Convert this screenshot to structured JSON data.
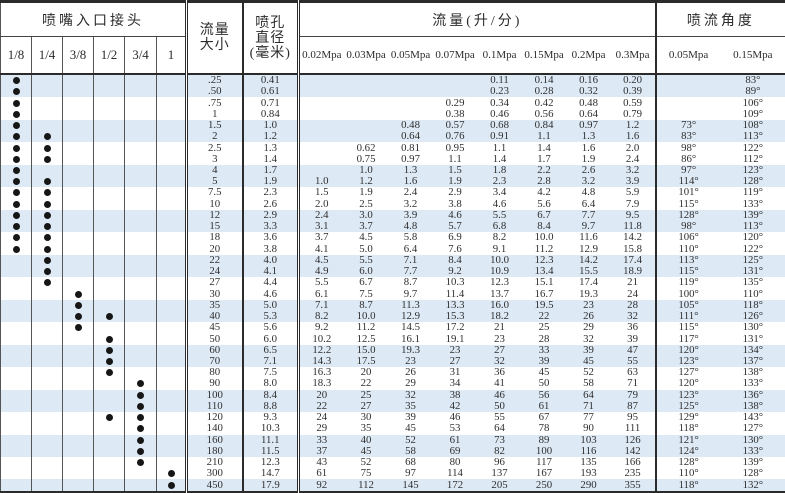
{
  "header": {
    "inlet_title": "喷嘴入口接头",
    "inlet_sizes": [
      "1/8",
      "1/4",
      "3/8",
      "1/2",
      "3/4",
      "1"
    ],
    "flow_size_label": "流量\n大小",
    "orifice_label": "喷孔\n直径\n(毫米)",
    "flow_title": "流量(升/分)",
    "flow_pressures": [
      "0.02Mpa",
      "0.03Mpa",
      "0.05Mpa",
      "0.07Mpa",
      "0.1Mpa",
      "0.15Mpa",
      "0.2Mpa",
      "0.3Mpa"
    ],
    "angle_title": "喷流角度",
    "angle_pressures": [
      "0.05Mpa",
      "0.15Mpa"
    ]
  },
  "colors": {
    "stripe": "#dde9f5",
    "text": "#2b2b2b",
    "border": "#2b2b2b",
    "dot": "#161616"
  },
  "rows": [
    {
      "size": ".25",
      "orifice": "0.41",
      "dots": [
        0
      ],
      "flows": [
        "",
        "",
        "",
        "",
        "0.11",
        "0.14",
        "0.16",
        "0.20"
      ],
      "angles": [
        "",
        "83°"
      ]
    },
    {
      "size": ".50",
      "orifice": "0.61",
      "dots": [
        0
      ],
      "flows": [
        "",
        "",
        "",
        "",
        "0.23",
        "0.28",
        "0.32",
        "0.39"
      ],
      "angles": [
        "",
        "89°"
      ]
    },
    {
      "size": ".75",
      "orifice": "0.71",
      "dots": [
        0
      ],
      "flows": [
        "",
        "",
        "",
        "0.29",
        "0.34",
        "0.42",
        "0.48",
        "0.59"
      ],
      "angles": [
        "",
        "106°"
      ]
    },
    {
      "size": "1",
      "orifice": "0.84",
      "dots": [
        0
      ],
      "flows": [
        "",
        "",
        "",
        "0.38",
        "0.46",
        "0.56",
        "0.64",
        "0.79"
      ],
      "angles": [
        "",
        "109°"
      ]
    },
    {
      "size": "1.5",
      "orifice": "1.0",
      "dots": [
        0
      ],
      "flows": [
        "",
        "",
        "0.48",
        "0.57",
        "0.68",
        "0.84",
        "0.97",
        "1.2"
      ],
      "angles": [
        "73°",
        "108°"
      ]
    },
    {
      "size": "2",
      "orifice": "1.2",
      "dots": [
        0,
        1
      ],
      "flows": [
        "",
        "",
        "0.64",
        "0.76",
        "0.91",
        "1.1",
        "1.3",
        "1.6"
      ],
      "angles": [
        "83°",
        "113°"
      ]
    },
    {
      "size": "2.5",
      "orifice": "1.3",
      "dots": [
        0,
        1
      ],
      "flows": [
        "",
        "0.62",
        "0.81",
        "0.95",
        "1.1",
        "1.4",
        "1.6",
        "2.0"
      ],
      "angles": [
        "98°",
        "122°"
      ]
    },
    {
      "size": "3",
      "orifice": "1.4",
      "dots": [
        0,
        1
      ],
      "flows": [
        "",
        "0.75",
        "0.97",
        "1.1",
        "1.4",
        "1.7",
        "1.9",
        "2.4"
      ],
      "angles": [
        "86°",
        "112°"
      ]
    },
    {
      "size": "4",
      "orifice": "1.7",
      "dots": [
        0
      ],
      "flows": [
        "",
        "1.0",
        "1.3",
        "1.5",
        "1.8",
        "2.2",
        "2.6",
        "3.2"
      ],
      "angles": [
        "97°",
        "123°"
      ]
    },
    {
      "size": "5",
      "orifice": "1.9",
      "dots": [
        0,
        1
      ],
      "flows": [
        "1.0",
        "1.2",
        "1.6",
        "1.9",
        "2.3",
        "2.8",
        "3.2",
        "3.9"
      ],
      "angles": [
        "114°",
        "128°"
      ]
    },
    {
      "size": "7.5",
      "orifice": "2.3",
      "dots": [
        0,
        1
      ],
      "flows": [
        "1.5",
        "1.9",
        "2.4",
        "2.9",
        "3.4",
        "4.2",
        "4.8",
        "5.9"
      ],
      "angles": [
        "101°",
        "119°"
      ]
    },
    {
      "size": "10",
      "orifice": "2.6",
      "dots": [
        0,
        1
      ],
      "flows": [
        "2.0",
        "2.5",
        "3.2",
        "3.8",
        "4.6",
        "5.6",
        "6.4",
        "7.9"
      ],
      "angles": [
        "115°",
        "133°"
      ]
    },
    {
      "size": "12",
      "orifice": "2.9",
      "dots": [
        0,
        1
      ],
      "flows": [
        "2.4",
        "3.0",
        "3.9",
        "4.6",
        "5.5",
        "6.7",
        "7.7",
        "9.5"
      ],
      "angles": [
        "128°",
        "139°"
      ]
    },
    {
      "size": "15",
      "orifice": "3.3",
      "dots": [
        0,
        1
      ],
      "flows": [
        "3.1",
        "3.7",
        "4.8",
        "5.7",
        "6.8",
        "8.4",
        "9.7",
        "11.8"
      ],
      "angles": [
        "98°",
        "113°"
      ]
    },
    {
      "size": "18",
      "orifice": "3.6",
      "dots": [
        0,
        1
      ],
      "flows": [
        "3.7",
        "4.5",
        "5.8",
        "6.9",
        "8.2",
        "10.0",
        "11.6",
        "14.2"
      ],
      "angles": [
        "106°",
        "120°"
      ]
    },
    {
      "size": "20",
      "orifice": "3.8",
      "dots": [
        0,
        1
      ],
      "flows": [
        "4.1",
        "5.0",
        "6.4",
        "7.6",
        "9.1",
        "11.2",
        "12.9",
        "15.8"
      ],
      "angles": [
        "110°",
        "122°"
      ]
    },
    {
      "size": "22",
      "orifice": "4.0",
      "dots": [
        1
      ],
      "flows": [
        "4.5",
        "5.5",
        "7.1",
        "8.4",
        "10.0",
        "12.3",
        "14.2",
        "17.4"
      ],
      "angles": [
        "113°",
        "125°"
      ]
    },
    {
      "size": "24",
      "orifice": "4.1",
      "dots": [
        1
      ],
      "flows": [
        "4.9",
        "6.0",
        "7.7",
        "9.2",
        "10.9",
        "13.4",
        "15.5",
        "18.9"
      ],
      "angles": [
        "115°",
        "131°"
      ]
    },
    {
      "size": "27",
      "orifice": "4.4",
      "dots": [
        1
      ],
      "flows": [
        "5.5",
        "6.7",
        "8.7",
        "10.3",
        "12.3",
        "15.1",
        "17.4",
        "21"
      ],
      "angles": [
        "119°",
        "135°"
      ]
    },
    {
      "size": "30",
      "orifice": "4.6",
      "dots": [
        2
      ],
      "flows": [
        "6.1",
        "7.5",
        "9.7",
        "11.4",
        "13.7",
        "16.7",
        "19.3",
        "24"
      ],
      "angles": [
        "100°",
        "110°"
      ]
    },
    {
      "size": "35",
      "orifice": "5.0",
      "dots": [
        2
      ],
      "flows": [
        "7.1",
        "8.7",
        "11.3",
        "13.3",
        "16.0",
        "19.5",
        "23",
        "28"
      ],
      "angles": [
        "105°",
        "118°"
      ]
    },
    {
      "size": "40",
      "orifice": "5.3",
      "dots": [
        2,
        3
      ],
      "flows": [
        "8.2",
        "10.0",
        "12.9",
        "15.3",
        "18.2",
        "22",
        "26",
        "32"
      ],
      "angles": [
        "111°",
        "126°"
      ]
    },
    {
      "size": "45",
      "orifice": "5.6",
      "dots": [
        2
      ],
      "flows": [
        "9.2",
        "11.2",
        "14.5",
        "17.2",
        "21",
        "25",
        "29",
        "36"
      ],
      "angles": [
        "115°",
        "130°"
      ]
    },
    {
      "size": "50",
      "orifice": "6.0",
      "dots": [
        3
      ],
      "flows": [
        "10.2",
        "12.5",
        "16.1",
        "19.1",
        "23",
        "28",
        "32",
        "39"
      ],
      "angles": [
        "117°",
        "131°"
      ]
    },
    {
      "size": "60",
      "orifice": "6.5",
      "dots": [
        3
      ],
      "flows": [
        "12.2",
        "15.0",
        "19.3",
        "23",
        "27",
        "33",
        "39",
        "47"
      ],
      "angles": [
        "120°",
        "134°"
      ]
    },
    {
      "size": "70",
      "orifice": "7.1",
      "dots": [
        3
      ],
      "flows": [
        "14.3",
        "17.5",
        "23",
        "27",
        "32",
        "39",
        "45",
        "55"
      ],
      "angles": [
        "123°",
        "137°"
      ]
    },
    {
      "size": "80",
      "orifice": "7.5",
      "dots": [
        3
      ],
      "flows": [
        "16.3",
        "20",
        "26",
        "31",
        "36",
        "45",
        "52",
        "63"
      ],
      "angles": [
        "127°",
        "138°"
      ]
    },
    {
      "size": "90",
      "orifice": "8.0",
      "dots": [
        4
      ],
      "flows": [
        "18.3",
        "22",
        "29",
        "34",
        "41",
        "50",
        "58",
        "71"
      ],
      "angles": [
        "120°",
        "133°"
      ]
    },
    {
      "size": "100",
      "orifice": "8.4",
      "dots": [
        4
      ],
      "flows": [
        "20",
        "25",
        "32",
        "38",
        "46",
        "56",
        "64",
        "79"
      ],
      "angles": [
        "123°",
        "136°"
      ]
    },
    {
      "size": "110",
      "orifice": "8.8",
      "dots": [
        4
      ],
      "flows": [
        "22",
        "27",
        "35",
        "42",
        "50",
        "61",
        "71",
        "87"
      ],
      "angles": [
        "125°",
        "138°"
      ]
    },
    {
      "size": "120",
      "orifice": "9.3",
      "dots": [
        3,
        4
      ],
      "flows": [
        "24",
        "30",
        "39",
        "46",
        "55",
        "67",
        "77",
        "95"
      ],
      "angles": [
        "129°",
        "143°"
      ]
    },
    {
      "size": "140",
      "orifice": "10.3",
      "dots": [
        4
      ],
      "flows": [
        "29",
        "35",
        "45",
        "53",
        "64",
        "78",
        "90",
        "111"
      ],
      "angles": [
        "118°",
        "127°"
      ]
    },
    {
      "size": "160",
      "orifice": "11.1",
      "dots": [
        4
      ],
      "flows": [
        "33",
        "40",
        "52",
        "61",
        "73",
        "89",
        "103",
        "126"
      ],
      "angles": [
        "121°",
        "130°"
      ]
    },
    {
      "size": "180",
      "orifice": "11.5",
      "dots": [
        4
      ],
      "flows": [
        "37",
        "45",
        "58",
        "69",
        "82",
        "100",
        "116",
        "142"
      ],
      "angles": [
        "124°",
        "133°"
      ]
    },
    {
      "size": "210",
      "orifice": "12.3",
      "dots": [
        4
      ],
      "flows": [
        "43",
        "52",
        "68",
        "80",
        "96",
        "117",
        "135",
        "166"
      ],
      "angles": [
        "128°",
        "139°"
      ]
    },
    {
      "size": "300",
      "orifice": "14.7",
      "dots": [
        5
      ],
      "flows": [
        "61",
        "75",
        "97",
        "114",
        "137",
        "167",
        "193",
        "235"
      ],
      "angles": [
        "110°",
        "128°"
      ]
    },
    {
      "size": "450",
      "orifice": "17.9",
      "dots": [
        5
      ],
      "flows": [
        "92",
        "112",
        "145",
        "172",
        "205",
        "250",
        "290",
        "355"
      ],
      "angles": [
        "118°",
        "132°"
      ]
    }
  ]
}
